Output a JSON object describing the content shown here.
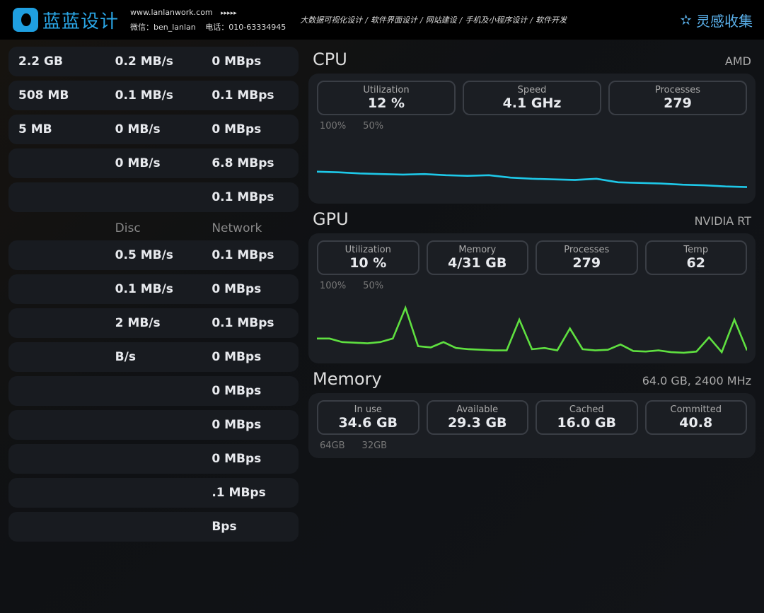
{
  "header": {
    "logo_text": "蓝蓝设计",
    "url": "www.lanlanwork.com",
    "arrows": "▸▸▸▸▸",
    "wechat": "微信：ben_lanlan",
    "phone": "电话：010-63334945",
    "nav": [
      "大数据可视化设计",
      "软件界面设计",
      "网站建设",
      "手机及小程序设计",
      "软件开发"
    ],
    "separator": "/",
    "brand": "灵感收集"
  },
  "left": {
    "top_rows": [
      [
        "2.2 GB",
        "0.2 MB/s",
        "0 MBps"
      ],
      [
        "508 MB",
        "0.1 MB/s",
        "0.1 MBps"
      ],
      [
        "5 MB",
        "0 MB/s",
        "0 MBps"
      ],
      [
        "",
        "0 MB/s",
        "6.8 MBps"
      ],
      [
        "",
        "",
        "0.1 MBps"
      ]
    ],
    "headers": [
      "Disc",
      "Network"
    ],
    "rows": [
      [
        "0.5 MB/s",
        "0.1 MBps"
      ],
      [
        "0.1 MB/s",
        "0 MBps"
      ],
      [
        "2 MB/s",
        "0.1 MBps"
      ],
      [
        "B/s",
        "0 MBps"
      ],
      [
        "",
        "0 MBps"
      ],
      [
        "",
        "0 MBps"
      ],
      [
        "",
        "0 MBps"
      ],
      [
        "",
        ".1 MBps"
      ],
      [
        "",
        "Bps"
      ]
    ]
  },
  "cpu": {
    "title": "CPU",
    "vendor": "AMD",
    "stats": [
      {
        "label": "Utilization",
        "value": "12 %"
      },
      {
        "label": "Speed",
        "value": "4.1 GHz"
      },
      {
        "label": "Processes",
        "value": "279"
      }
    ],
    "axis": [
      "100%",
      "50%"
    ],
    "color": "#1ec8e8",
    "series": [
      40,
      39,
      37,
      36,
      35,
      36,
      34,
      33,
      34,
      30,
      28,
      27,
      26,
      28,
      22,
      21,
      20,
      18,
      17,
      15,
      14
    ]
  },
  "gpu": {
    "title": "GPU",
    "vendor": "NVIDIA RT",
    "stats": [
      {
        "label": "Utilization",
        "value": "10 %"
      },
      {
        "label": "Memory",
        "value": "4/31 GB"
      },
      {
        "label": "Processes",
        "value": "279"
      },
      {
        "label": "Temp",
        "value": "62"
      }
    ],
    "axis": [
      "100%",
      "50%"
    ],
    "color": "#5fe040",
    "series": [
      28,
      28,
      22,
      21,
      20,
      22,
      28,
      80,
      15,
      13,
      22,
      12,
      10,
      9,
      8,
      8,
      60,
      10,
      12,
      8,
      45,
      10,
      8,
      9,
      18,
      7,
      6,
      8,
      5,
      4,
      6,
      30,
      5,
      60,
      8
    ]
  },
  "memory": {
    "title": "Memory",
    "spec": "64.0 GB, 2400 MHz",
    "stats": [
      {
        "label": "In use",
        "value": "34.6 GB"
      },
      {
        "label": "Available",
        "value": "29.3 GB"
      },
      {
        "label": "Cached",
        "value": "16.0 GB"
      },
      {
        "label": "Committed",
        "value": "40.8"
      }
    ],
    "axis": [
      "64GB",
      "32GB"
    ]
  }
}
